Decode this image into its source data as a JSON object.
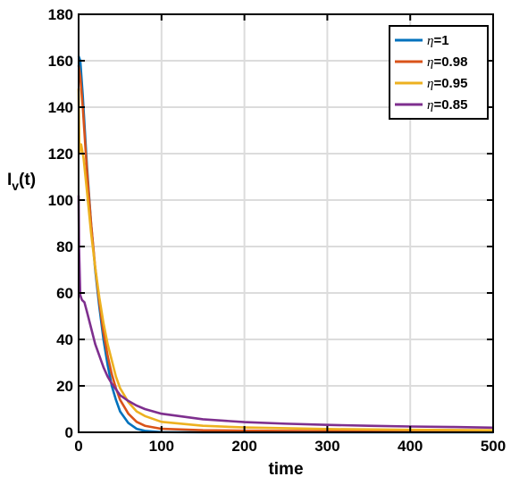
{
  "chart_data": {
    "type": "line",
    "title": "",
    "xlabel": "time",
    "ylabel_main": "I",
    "ylabel_sub": "v",
    "ylabel_suffix": "(t)",
    "xlim": [
      0,
      500
    ],
    "ylim": [
      0,
      180
    ],
    "xticks": [
      0,
      100,
      200,
      300,
      400,
      500
    ],
    "yticks": [
      0,
      20,
      40,
      60,
      80,
      100,
      120,
      140,
      160,
      180
    ],
    "grid": true,
    "legend_position": "top-right",
    "legend_symbol": "η",
    "series": [
      {
        "name": "=1",
        "color": "#0072BD",
        "points": [
          [
            0,
            162
          ],
          [
            2,
            160
          ],
          [
            5,
            145
          ],
          [
            10,
            115
          ],
          [
            15,
            90
          ],
          [
            20,
            70
          ],
          [
            25,
            54
          ],
          [
            30,
            40
          ],
          [
            35,
            29
          ],
          [
            40,
            20
          ],
          [
            45,
            14
          ],
          [
            50,
            9
          ],
          [
            60,
            4
          ],
          [
            70,
            1.5
          ],
          [
            80,
            0.6
          ],
          [
            100,
            0.1
          ],
          [
            150,
            0
          ],
          [
            500,
            0
          ]
        ]
      },
      {
        "name": "=0.98",
        "color": "#D95319",
        "points": [
          [
            0,
            158
          ],
          [
            2,
            153
          ],
          [
            5,
            140
          ],
          [
            10,
            113
          ],
          [
            15,
            90
          ],
          [
            20,
            71
          ],
          [
            25,
            56
          ],
          [
            30,
            43
          ],
          [
            35,
            33
          ],
          [
            40,
            25
          ],
          [
            45,
            19
          ],
          [
            50,
            14
          ],
          [
            60,
            8
          ],
          [
            70,
            4.5
          ],
          [
            80,
            2.8
          ],
          [
            100,
            1.5
          ],
          [
            150,
            0.9
          ],
          [
            200,
            0.7
          ],
          [
            300,
            0.5
          ],
          [
            400,
            0.4
          ],
          [
            500,
            0.3
          ]
        ]
      },
      {
        "name": "=0.95",
        "color": "#EDB120",
        "points": [
          [
            0,
            148
          ],
          [
            1,
            120
          ],
          [
            3,
            124
          ],
          [
            6,
            118
          ],
          [
            10,
            104
          ],
          [
            15,
            86
          ],
          [
            20,
            71
          ],
          [
            25,
            58
          ],
          [
            30,
            47
          ],
          [
            35,
            38
          ],
          [
            40,
            31
          ],
          [
            45,
            24
          ],
          [
            50,
            19
          ],
          [
            60,
            13
          ],
          [
            70,
            9
          ],
          [
            80,
            7
          ],
          [
            100,
            4.5
          ],
          [
            150,
            2.8
          ],
          [
            200,
            2.1
          ],
          [
            300,
            1.4
          ],
          [
            400,
            1.1
          ],
          [
            500,
            0.9
          ]
        ]
      },
      {
        "name": "=0.85",
        "color": "#7E2F8E",
        "points": [
          [
            0,
            102
          ],
          [
            0.5,
            80
          ],
          [
            2,
            59
          ],
          [
            4,
            57
          ],
          [
            7,
            56
          ],
          [
            10,
            52
          ],
          [
            15,
            45
          ],
          [
            20,
            38
          ],
          [
            25,
            33
          ],
          [
            30,
            28
          ],
          [
            35,
            24
          ],
          [
            40,
            21
          ],
          [
            45,
            18.5
          ],
          [
            50,
            16
          ],
          [
            60,
            13.5
          ],
          [
            70,
            11.5
          ],
          [
            80,
            10
          ],
          [
            100,
            8
          ],
          [
            150,
            5.6
          ],
          [
            200,
            4.4
          ],
          [
            250,
            3.7
          ],
          [
            300,
            3.2
          ],
          [
            350,
            2.8
          ],
          [
            400,
            2.5
          ],
          [
            450,
            2.3
          ],
          [
            500,
            2
          ]
        ]
      }
    ]
  }
}
